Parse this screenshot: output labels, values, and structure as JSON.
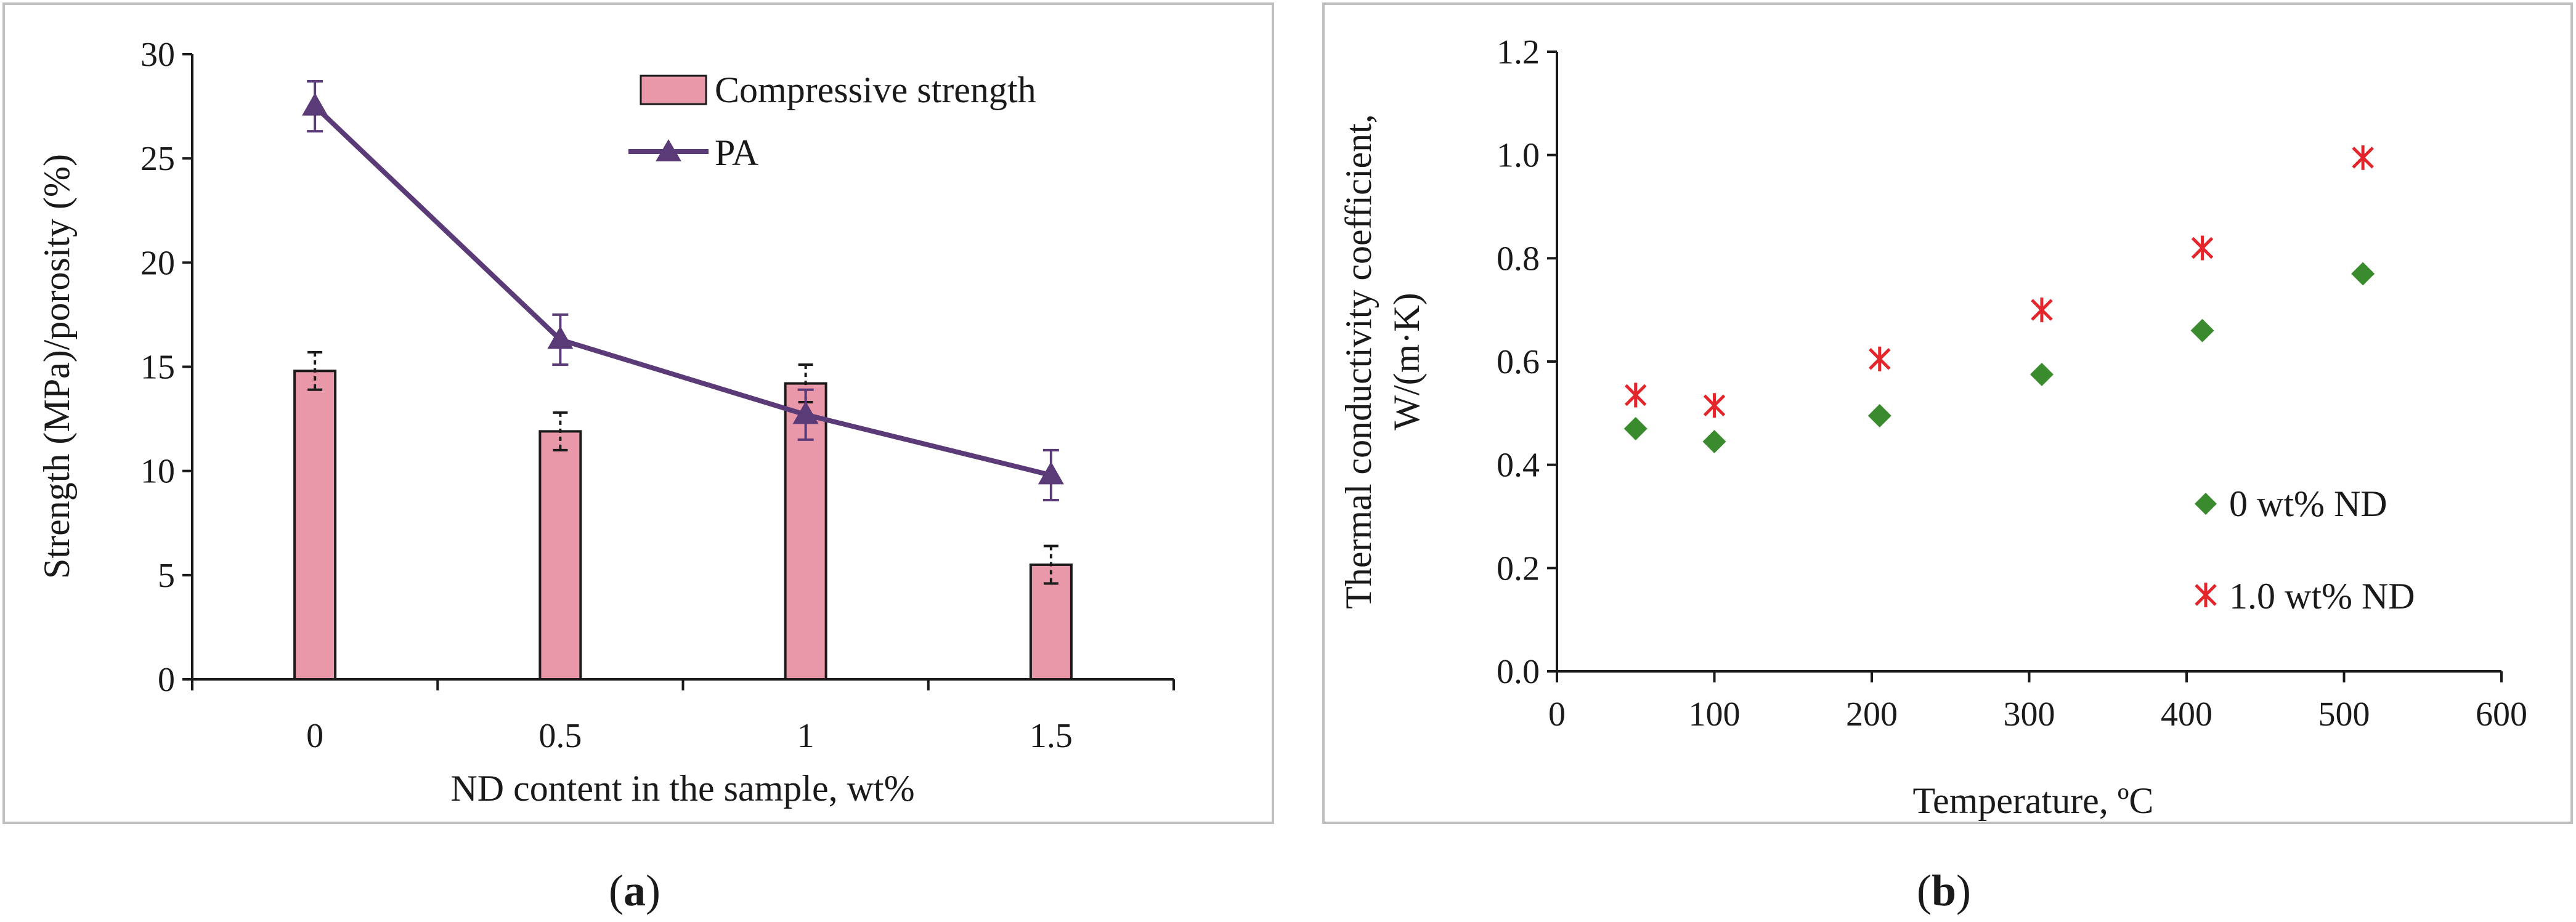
{
  "panel_labels": {
    "a": "a",
    "b": "b"
  },
  "chart_data": [
    {
      "type": "bar",
      "panel": "a",
      "categories": [
        "0",
        "0.5",
        "1",
        "1.5"
      ],
      "series": [
        {
          "name": "Compressive strength",
          "kind": "bar",
          "color": "#e898a9",
          "values": [
            14.8,
            11.9,
            14.2,
            5.5
          ],
          "errors": [
            0.9,
            0.9,
            0.9,
            0.9
          ]
        },
        {
          "name": "PA",
          "kind": "line",
          "color": "#5b3a78",
          "values": [
            27.5,
            16.3,
            12.7,
            9.8
          ],
          "errors": [
            1.2,
            1.2,
            1.2,
            1.2
          ]
        }
      ],
      "xlabel": "ND content in the sample, wt%",
      "ylabel": "Strength (MPa)/porosity (%)",
      "ylim": [
        0,
        30
      ],
      "yticks": [
        "0",
        "5",
        "10",
        "15",
        "20",
        "25",
        "30"
      ],
      "legend_position": "top-right",
      "grid": false
    },
    {
      "type": "scatter",
      "panel": "b",
      "series": [
        {
          "name": "0 wt% ND",
          "marker": "diamond",
          "color": "#3a8a2e",
          "x": [
            50,
            100,
            205,
            308,
            410,
            512
          ],
          "y": [
            0.47,
            0.445,
            0.495,
            0.575,
            0.66,
            0.77
          ]
        },
        {
          "name": "1.0 wt% ND",
          "marker": "asterisk",
          "color": "#e3262b",
          "x": [
            50,
            100,
            205,
            308,
            410,
            512
          ],
          "y": [
            0.535,
            0.515,
            0.605,
            0.7,
            0.82,
            0.995
          ]
        }
      ],
      "xlabel": "Temperature, ºC",
      "ylabel_line1": "Thermal conductivity coefficient,",
      "ylabel_line2": "W/(m·K)",
      "xlim": [
        0,
        600
      ],
      "ylim": [
        0,
        1.2
      ],
      "xticks": [
        "0",
        "100",
        "200",
        "300",
        "400",
        "500",
        "600"
      ],
      "yticks": [
        "0.0",
        "0.2",
        "0.4",
        "0.6",
        "0.8",
        "1.0",
        "1.2"
      ],
      "legend_position": "bottom-right",
      "grid": false
    }
  ]
}
